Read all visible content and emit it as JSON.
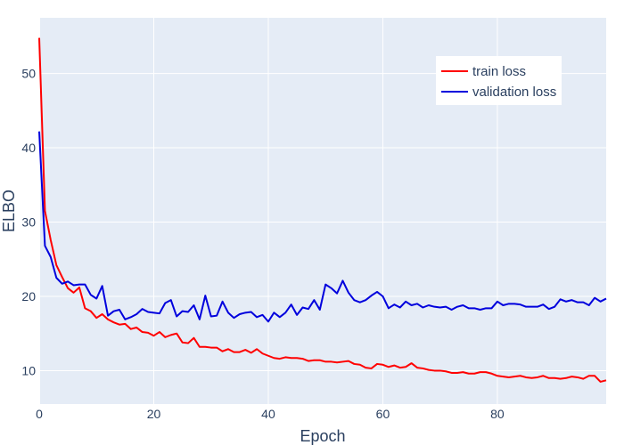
{
  "chart_data": {
    "type": "line",
    "xlabel": "Epoch",
    "ylabel": "ELBO",
    "xlim": [
      0,
      99
    ],
    "ylim": [
      5.5,
      57.5
    ],
    "x_ticks": [
      0,
      20,
      40,
      60,
      80
    ],
    "y_ticks": [
      10,
      20,
      30,
      40,
      50
    ],
    "grid": true,
    "legend_position": "top-right",
    "background": "#E5ECF6",
    "series": [
      {
        "name": "train loss",
        "color": "#FF0000",
        "x": [
          0,
          1,
          2,
          3,
          4,
          5,
          6,
          7,
          8,
          9,
          10,
          11,
          12,
          13,
          14,
          15,
          16,
          17,
          18,
          19,
          20,
          21,
          22,
          23,
          24,
          25,
          26,
          27,
          28,
          29,
          30,
          31,
          32,
          33,
          34,
          35,
          36,
          37,
          38,
          39,
          40,
          41,
          42,
          43,
          44,
          45,
          46,
          47,
          48,
          49,
          50,
          51,
          52,
          53,
          54,
          55,
          56,
          57,
          58,
          59,
          60,
          61,
          62,
          63,
          64,
          65,
          66,
          67,
          68,
          69,
          70,
          71,
          72,
          73,
          74,
          75,
          76,
          77,
          78,
          79,
          80,
          81,
          82,
          83,
          84,
          85,
          86,
          87,
          88,
          89,
          90,
          91,
          92,
          93,
          94,
          95,
          96,
          97,
          98,
          99
        ],
        "values": [
          54.8,
          31.5,
          27.6,
          24.2,
          22.6,
          21.1,
          20.5,
          21.2,
          18.4,
          18.0,
          17.1,
          17.6,
          16.9,
          16.5,
          16.2,
          16.3,
          15.6,
          15.8,
          15.2,
          15.1,
          14.7,
          15.2,
          14.5,
          14.8,
          15.0,
          13.8,
          13.7,
          14.4,
          13.2,
          13.2,
          13.1,
          13.1,
          12.6,
          12.9,
          12.5,
          12.5,
          12.8,
          12.4,
          12.9,
          12.3,
          12.0,
          11.7,
          11.6,
          11.8,
          11.7,
          11.7,
          11.6,
          11.3,
          11.4,
          11.4,
          11.2,
          11.2,
          11.1,
          11.2,
          11.3,
          10.9,
          10.8,
          10.4,
          10.3,
          10.9,
          10.8,
          10.5,
          10.7,
          10.4,
          10.5,
          11.0,
          10.4,
          10.3,
          10.1,
          10.0,
          10.0,
          9.9,
          9.7,
          9.7,
          9.8,
          9.6,
          9.6,
          9.8,
          9.8,
          9.6,
          9.3,
          9.2,
          9.1,
          9.2,
          9.3,
          9.1,
          9.0,
          9.1,
          9.3,
          9.0,
          9.0,
          8.9,
          9.0,
          9.2,
          9.1,
          8.9,
          9.3,
          9.3,
          8.5,
          8.7
        ]
      },
      {
        "name": "validation loss",
        "color": "#0000DD",
        "x": [
          0,
          1,
          2,
          3,
          4,
          5,
          6,
          7,
          8,
          9,
          10,
          11,
          12,
          13,
          14,
          15,
          16,
          17,
          18,
          19,
          20,
          21,
          22,
          23,
          24,
          25,
          26,
          27,
          28,
          29,
          30,
          31,
          32,
          33,
          34,
          35,
          36,
          37,
          38,
          39,
          40,
          41,
          42,
          43,
          44,
          45,
          46,
          47,
          48,
          49,
          50,
          51,
          52,
          53,
          54,
          55,
          56,
          57,
          58,
          59,
          60,
          61,
          62,
          63,
          64,
          65,
          66,
          67,
          68,
          69,
          70,
          71,
          72,
          73,
          74,
          75,
          76,
          77,
          78,
          79,
          80,
          81,
          82,
          83,
          84,
          85,
          86,
          87,
          88,
          89,
          90,
          91,
          92,
          93,
          94,
          95,
          96,
          97,
          98,
          99
        ],
        "values": [
          42.2,
          26.8,
          25.3,
          22.5,
          21.7,
          22.0,
          21.5,
          21.6,
          21.6,
          20.2,
          19.7,
          21.4,
          17.4,
          18.0,
          18.2,
          16.9,
          17.2,
          17.6,
          18.3,
          17.9,
          17.8,
          17.7,
          19.1,
          19.5,
          17.3,
          18.0,
          17.9,
          18.8,
          16.9,
          20.1,
          17.3,
          17.4,
          19.3,
          17.8,
          17.1,
          17.6,
          17.8,
          17.9,
          17.2,
          17.5,
          16.6,
          17.8,
          17.2,
          17.8,
          18.9,
          17.5,
          18.5,
          18.3,
          19.5,
          18.2,
          21.6,
          21.1,
          20.4,
          22.1,
          20.5,
          19.5,
          19.2,
          19.5,
          20.1,
          20.6,
          20.0,
          18.4,
          18.9,
          18.5,
          19.3,
          18.8,
          19.0,
          18.5,
          18.8,
          18.6,
          18.5,
          18.6,
          18.2,
          18.6,
          18.8,
          18.4,
          18.4,
          18.2,
          18.4,
          18.4,
          19.3,
          18.8,
          19.0,
          19.0,
          18.9,
          18.6,
          18.6,
          18.6,
          18.9,
          18.3,
          18.6,
          19.6,
          19.3,
          19.5,
          19.2,
          19.2,
          18.8,
          19.8,
          19.3,
          19.7
        ]
      }
    ]
  }
}
